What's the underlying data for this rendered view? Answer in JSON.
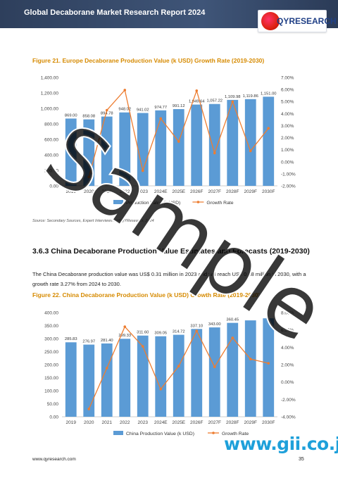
{
  "header": {
    "title": "Global Decaborane Market Research Report 2024",
    "logo_text": "QYRESEARCH"
  },
  "figure21": {
    "caption": "Figure 21.   Europe Decaborane Production Value (k USD) Growth Rate (2019-2030)"
  },
  "source_text": "Source: Secondary Sources, Expert Interviews and QYResearch, 2024",
  "section": {
    "heading": "3.6.3   China Decaborane Production Value Estimates and Forecasts (2019-2030)",
    "paragraph": "The China Decaborane production value was US$ 0.31 million in 2023 and will reach US$ 0.38 million in 2030, with a growth rate 3.27% from 2024 to 2030."
  },
  "figure22": {
    "caption": "Figure 22.   China Decaborane Production Value (k USD) Growth Rate (2019-2030)"
  },
  "footer": {
    "url": "www.qyresearch.com",
    "page_number": "35"
  },
  "watermark": {
    "text": "Sample",
    "overlay": "www.gii.co.jp"
  },
  "colors": {
    "bar": "#5b9bd5",
    "line": "#ed7d31",
    "caption": "#d68a00",
    "link": "#1ea0da"
  },
  "chart_data": [
    {
      "type": "bar",
      "categories": [
        "2019",
        "2020",
        "2021",
        "2022",
        "2023",
        "2024E",
        "2025E",
        "2026F",
        "2027F",
        "2028F",
        "2029F",
        "2030F"
      ],
      "series": [
        {
          "name": "Production Value (k USD)",
          "type": "bar",
          "axis": "left",
          "values": [
            869.0,
            858.08,
            894.78,
            948.02,
            941.02,
            974.77,
            991.12,
            1049.64,
            1057.22,
            1109.98,
            1119.86,
            1151.0
          ],
          "labels": [
            "869.00",
            "858.08",
            "894.78",
            "948.02",
            "941.02",
            "974.77",
            "991.12",
            "1,049.64",
            "1,057.22",
            "1,109.98",
            "1,119.86",
            "1,151.00"
          ]
        },
        {
          "name": "Growth Rate",
          "type": "line",
          "axis": "right",
          "values": [
            null,
            -1.26,
            4.28,
            5.95,
            -0.74,
            3.59,
            1.68,
            5.9,
            0.72,
            4.99,
            0.89,
            2.78
          ]
        }
      ],
      "ylim": [
        0,
        1400
      ],
      "yticks": [
        "0.00",
        "200.00",
        "400.00",
        "600.00",
        "800.00",
        "1,000.00",
        "1,200.00",
        "1,400.00"
      ],
      "y2lim": [
        -2,
        7
      ],
      "y2ticks": [
        "-2.00%",
        "-1.00%",
        "0.00%",
        "1.00%",
        "2.00%",
        "3.00%",
        "4.00%",
        "5.00%",
        "6.00%",
        "7.00%"
      ],
      "legend": "bottom"
    },
    {
      "type": "bar",
      "categories": [
        "2019",
        "2020",
        "2021",
        "2022",
        "2023",
        "2024E",
        "2025E",
        "2026F",
        "2027F",
        "2028F",
        "2029F",
        "2030F"
      ],
      "series": [
        {
          "name": "China Production Value (k USD)",
          "type": "bar",
          "axis": "left",
          "values": [
            285.83,
            276.97,
            281.4,
            299.33,
            311.6,
            309.05,
            314.72,
            337.1,
            343.0,
            360.45,
            370.0,
            378.0
          ],
          "labels": [
            "285.83",
            "276.97",
            "281.40",
            "299.33",
            "311.60",
            "309.05",
            "314.72",
            "337.10",
            "343.00",
            "360.45",
            "",
            ""
          ]
        },
        {
          "name": "Growth Rate",
          "type": "line",
          "axis": "right",
          "values": [
            null,
            -3.1,
            1.6,
            6.37,
            4.1,
            -0.82,
            1.83,
            5.89,
            1.75,
            5.09,
            2.65,
            2.16
          ]
        }
      ],
      "ylim": [
        0,
        400
      ],
      "yticks": [
        "0.00",
        "50.00",
        "100.00",
        "150.00",
        "200.00",
        "250.00",
        "300.00",
        "350.00",
        "400.00"
      ],
      "y2lim": [
        -4,
        8
      ],
      "y2ticks": [
        "-4.00%",
        "-2.00%",
        "0.00%",
        "2.00%",
        "4.00%",
        "6.00%",
        "8.00%"
      ],
      "legend": "bottom"
    }
  ]
}
